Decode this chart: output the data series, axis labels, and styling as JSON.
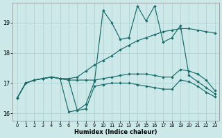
{
  "xlabel": "Humidex (Indice chaleur)",
  "bg_color": "#cce8e8",
  "line_color": "#1a6b6b",
  "grid_color": "#aacfcf",
  "xlim": [
    -0.5,
    23.5
  ],
  "ylim": [
    15.75,
    19.65
  ],
  "yticks": [
    16,
    17,
    18,
    19
  ],
  "xticks": [
    0,
    1,
    2,
    3,
    4,
    5,
    6,
    7,
    8,
    9,
    10,
    11,
    12,
    13,
    14,
    15,
    16,
    17,
    18,
    19,
    20,
    21,
    22,
    23
  ],
  "curve_volatile_x": [
    0,
    1,
    2,
    3,
    4,
    5,
    6,
    7,
    8,
    9,
    10,
    11,
    12,
    13,
    14,
    15,
    16,
    17,
    18,
    19,
    20,
    21,
    22,
    23
  ],
  "curve_volatile_y": [
    16.5,
    17.0,
    17.1,
    17.15,
    17.2,
    17.15,
    17.1,
    16.1,
    16.3,
    17.05,
    19.4,
    19.0,
    18.45,
    18.5,
    19.55,
    19.05,
    19.55,
    18.35,
    18.5,
    18.9,
    17.25,
    17.05,
    16.85,
    16.65
  ],
  "curve_trend_x": [
    0,
    1,
    2,
    3,
    4,
    5,
    6,
    7,
    8,
    9,
    10,
    11,
    12,
    13,
    14,
    15,
    16,
    17,
    18,
    19,
    20,
    21,
    22,
    23
  ],
  "curve_trend_y": [
    16.5,
    17.0,
    17.1,
    17.15,
    17.2,
    17.15,
    17.15,
    17.2,
    17.4,
    17.6,
    17.75,
    17.9,
    18.1,
    18.25,
    18.4,
    18.5,
    18.6,
    18.7,
    18.75,
    18.8,
    18.8,
    18.75,
    18.7,
    18.65
  ],
  "curve_flat_x": [
    0,
    1,
    2,
    3,
    4,
    5,
    6,
    7,
    8,
    9,
    10,
    11,
    12,
    13,
    14,
    15,
    16,
    17,
    18,
    19,
    20,
    21,
    22,
    23
  ],
  "curve_flat_y": [
    16.5,
    17.0,
    17.1,
    17.15,
    17.2,
    17.15,
    17.1,
    17.1,
    17.1,
    17.1,
    17.15,
    17.2,
    17.25,
    17.3,
    17.3,
    17.3,
    17.25,
    17.2,
    17.2,
    17.45,
    17.4,
    17.3,
    17.1,
    16.75
  ],
  "curve_lower_x": [
    0,
    1,
    2,
    3,
    4,
    5,
    6,
    7,
    8,
    9,
    10,
    11,
    12,
    13,
    14,
    15,
    16,
    17,
    18,
    19,
    20,
    21,
    22,
    23
  ],
  "curve_lower_y": [
    16.5,
    17.0,
    17.1,
    17.15,
    17.2,
    17.15,
    16.05,
    16.1,
    16.15,
    16.9,
    16.95,
    17.0,
    17.0,
    17.0,
    16.95,
    16.9,
    16.85,
    16.8,
    16.8,
    17.1,
    17.05,
    16.9,
    16.7,
    16.55
  ]
}
